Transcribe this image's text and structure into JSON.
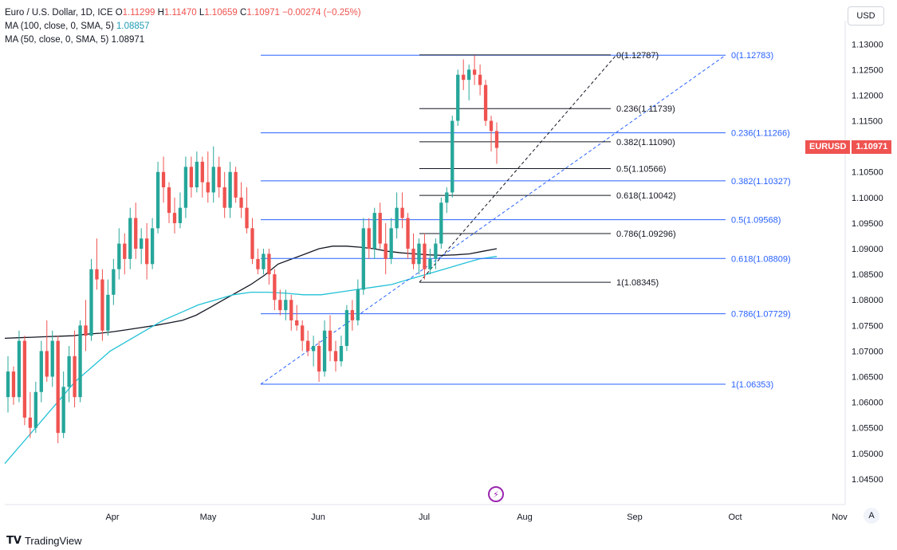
{
  "legend": {
    "title": "Euro / U.S. Dollar, 1D, ICE",
    "open_label": "O",
    "open": "1.11299",
    "high_label": "H",
    "high": "1.11470",
    "low_label": "L",
    "low": "1.10659",
    "close_label": "C",
    "close": "1.10971",
    "change": "−0.00274 (−0.25%)",
    "ma100_label": "MA (100, close, 0, SMA, 5)",
    "ma100_value": "1.08857",
    "ma50_label": "MA (50, close, 0, SMA, 5)",
    "ma50_value": "1.08971"
  },
  "currency_button": "USD",
  "price_tag": {
    "symbol": "EURUSD",
    "price": "1.10971",
    "color": "#ef5350"
  },
  "auto_button": "A",
  "brand": "TradingView",
  "colors": {
    "up": "#26a69a",
    "down": "#ef5350",
    "ma100": "#131722",
    "ma50": "#22c1d6",
    "fib_blue": "#2962ff",
    "fib_black": "#131722"
  },
  "chart_data": {
    "type": "candlestick",
    "y_axis": {
      "ylim": [
        1.04,
        1.133
      ],
      "ticks": [
        "1.13000",
        "1.12500",
        "1.12000",
        "1.11500",
        "1.11000",
        "1.10500",
        "1.10000",
        "1.09500",
        "1.09000",
        "1.08500",
        "1.08000",
        "1.07500",
        "1.07000",
        "1.06500",
        "1.06000",
        "1.05500",
        "1.05000",
        "1.04500"
      ]
    },
    "x_axis": {
      "ticks": [
        "Apr",
        "May",
        "Jun",
        "Jul",
        "Aug",
        "Sep",
        "Oct",
        "Nov"
      ]
    },
    "candles": [
      [
        1.061,
        1.069,
        1.058,
        1.066
      ],
      [
        1.066,
        1.067,
        1.0595,
        1.061
      ],
      [
        1.061,
        1.074,
        1.06,
        1.072
      ],
      [
        1.072,
        1.073,
        1.0555,
        1.057
      ],
      [
        1.057,
        1.062,
        1.053,
        1.055
      ],
      [
        1.055,
        1.064,
        1.054,
        1.062
      ],
      [
        1.062,
        1.072,
        1.06,
        1.07
      ],
      [
        1.07,
        1.076,
        1.064,
        1.065
      ],
      [
        1.065,
        1.074,
        1.063,
        1.072
      ],
      [
        1.072,
        1.073,
        1.052,
        1.054
      ],
      [
        1.054,
        1.066,
        1.053,
        1.063
      ],
      [
        1.063,
        1.071,
        1.06,
        1.069
      ],
      [
        1.069,
        1.074,
        1.059,
        1.061
      ],
      [
        1.061,
        1.076,
        1.06,
        1.075
      ],
      [
        1.075,
        1.08,
        1.07,
        1.073
      ],
      [
        1.073,
        1.088,
        1.072,
        1.086
      ],
      [
        1.086,
        1.092,
        1.082,
        1.084
      ],
      [
        1.084,
        1.086,
        1.072,
        1.074
      ],
      [
        1.074,
        1.084,
        1.073,
        1.081
      ],
      [
        1.081,
        1.088,
        1.079,
        1.086
      ],
      [
        1.086,
        1.094,
        1.084,
        1.091
      ],
      [
        1.091,
        1.093,
        1.085,
        1.088
      ],
      [
        1.088,
        1.098,
        1.086,
        1.096
      ],
      [
        1.096,
        1.099,
        1.088,
        1.09
      ],
      [
        1.09,
        1.094,
        1.087,
        1.092
      ],
      [
        1.092,
        1.095,
        1.084,
        1.087
      ],
      [
        1.087,
        1.096,
        1.086,
        1.094
      ],
      [
        1.094,
        1.107,
        1.093,
        1.105
      ],
      [
        1.105,
        1.108,
        1.099,
        1.102
      ],
      [
        1.102,
        1.103,
        1.095,
        1.097
      ],
      [
        1.097,
        1.1,
        1.093,
        1.095
      ],
      [
        1.095,
        1.101,
        1.094,
        1.098
      ],
      [
        1.098,
        1.108,
        1.096,
        1.106
      ],
      [
        1.106,
        1.108,
        1.1,
        1.102
      ],
      [
        1.102,
        1.109,
        1.101,
        1.107
      ],
      [
        1.107,
        1.108,
        1.1,
        1.103
      ],
      [
        1.103,
        1.109,
        1.099,
        1.101
      ],
      [
        1.101,
        1.11,
        1.099,
        1.106
      ],
      [
        1.106,
        1.108,
        1.1,
        1.102
      ],
      [
        1.102,
        1.105,
        1.096,
        1.098
      ],
      [
        1.098,
        1.107,
        1.096,
        1.105
      ],
      [
        1.105,
        1.106,
        1.099,
        1.1
      ],
      [
        1.1,
        1.103,
        1.096,
        1.098
      ],
      [
        1.098,
        1.102,
        1.093,
        1.094
      ],
      [
        1.094,
        1.096,
        1.087,
        1.088
      ],
      [
        1.088,
        1.09,
        1.085,
        1.086
      ],
      [
        1.086,
        1.09,
        1.085,
        1.089
      ],
      [
        1.089,
        1.09,
        1.083,
        1.085
      ],
      [
        1.085,
        1.086,
        1.078,
        1.08
      ],
      [
        1.08,
        1.082,
        1.077,
        1.078
      ],
      [
        1.078,
        1.082,
        1.076,
        1.08
      ],
      [
        1.08,
        1.081,
        1.074,
        1.076
      ],
      [
        1.076,
        1.079,
        1.074,
        1.075
      ],
      [
        1.075,
        1.076,
        1.07,
        1.072
      ],
      [
        1.072,
        1.074,
        1.069,
        1.07
      ],
      [
        1.07,
        1.073,
        1.067,
        1.071
      ],
      [
        1.071,
        1.072,
        1.064,
        1.066
      ],
      [
        1.066,
        1.076,
        1.065,
        1.074
      ],
      [
        1.074,
        1.077,
        1.068,
        1.07
      ],
      [
        1.07,
        1.072,
        1.066,
        1.068
      ],
      [
        1.068,
        1.073,
        1.067,
        1.071
      ],
      [
        1.071,
        1.079,
        1.07,
        1.078
      ],
      [
        1.078,
        1.08,
        1.074,
        1.076
      ],
      [
        1.076,
        1.084,
        1.075,
        1.082
      ],
      [
        1.082,
        1.096,
        1.081,
        1.094
      ],
      [
        1.094,
        1.096,
        1.088,
        1.09
      ],
      [
        1.09,
        1.098,
        1.088,
        1.097
      ],
      [
        1.097,
        1.099,
        1.09,
        1.091
      ],
      [
        1.091,
        1.095,
        1.085,
        1.088
      ],
      [
        1.088,
        1.096,
        1.087,
        1.094
      ],
      [
        1.094,
        1.101,
        1.092,
        1.098
      ],
      [
        1.098,
        1.101,
        1.094,
        1.096
      ],
      [
        1.096,
        1.097,
        1.088,
        1.09
      ],
      [
        1.09,
        1.093,
        1.086,
        1.087
      ],
      [
        1.087,
        1.092,
        1.085,
        1.091
      ],
      [
        1.091,
        1.093,
        1.084,
        1.086
      ],
      [
        1.086,
        1.09,
        1.085,
        1.088
      ],
      [
        1.088,
        1.092,
        1.086,
        1.091
      ],
      [
        1.091,
        1.1,
        1.09,
        1.099
      ],
      [
        1.099,
        1.102,
        1.097,
        1.101
      ],
      [
        1.101,
        1.116,
        1.1,
        1.115
      ],
      [
        1.115,
        1.125,
        1.114,
        1.124
      ],
      [
        1.124,
        1.127,
        1.121,
        1.123
      ],
      [
        1.123,
        1.126,
        1.119,
        1.125
      ],
      [
        1.125,
        1.1278,
        1.122,
        1.124
      ],
      [
        1.124,
        1.126,
        1.12,
        1.122
      ],
      [
        1.122,
        1.123,
        1.114,
        1.115
      ],
      [
        1.115,
        1.116,
        1.109,
        1.113
      ],
      [
        1.113,
        1.1147,
        1.1066,
        1.1097
      ]
    ],
    "ma100": [
      1.0725,
      1.0726,
      1.0727,
      1.0728,
      1.0729,
      1.073,
      1.0733,
      1.0735,
      1.0738,
      1.0742,
      1.0746,
      1.075,
      1.0755,
      1.076,
      1.077,
      1.0785,
      1.08,
      1.0815,
      1.083,
      1.0848,
      1.087,
      1.088,
      1.089,
      1.09,
      1.0905,
      1.0905,
      1.0903,
      1.09,
      1.0895,
      1.0892,
      1.089,
      1.0888,
      1.0887,
      1.0888,
      1.089,
      1.0895,
      1.09
    ],
    "ma50": [
      1.048,
      1.052,
      1.056,
      1.06,
      1.064,
      1.067,
      1.07,
      1.072,
      1.074,
      1.076,
      1.0775,
      1.079,
      1.08,
      1.081,
      1.0815,
      1.0815,
      1.0813,
      1.081,
      1.081,
      1.0815,
      1.082,
      1.0825,
      1.083,
      1.084,
      1.085,
      1.086,
      1.087,
      1.088,
      1.0885
    ],
    "fib_large": {
      "color": "#2962ff",
      "levels": [
        {
          "label": "0(1.12783)",
          "value": 1.12783
        },
        {
          "label": "0.236(1.11266)",
          "value": 1.11266
        },
        {
          "label": "0.382(1.10327)",
          "value": 1.10327
        },
        {
          "label": "0.5(1.09568)",
          "value": 1.09568
        },
        {
          "label": "0.618(1.08809)",
          "value": 1.08809
        },
        {
          "label": "0.786(1.07729)",
          "value": 1.07729
        },
        {
          "label": "1(1.06353)",
          "value": 1.06353
        }
      ]
    },
    "fib_small": {
      "color": "#131722",
      "levels": [
        {
          "label": "0(1.12787)",
          "value": 1.12787
        },
        {
          "label": "0.236(1.11739)",
          "value": 1.11739
        },
        {
          "label": "0.382(1.11090)",
          "value": 1.1109
        },
        {
          "label": "0.5(1.10566)",
          "value": 1.10566
        },
        {
          "label": "0.618(1.10042)",
          "value": 1.10042
        },
        {
          "label": "0.786(1.09296)",
          "value": 1.09296
        },
        {
          "label": "1(1.08345)",
          "value": 1.08345
        }
      ]
    }
  }
}
